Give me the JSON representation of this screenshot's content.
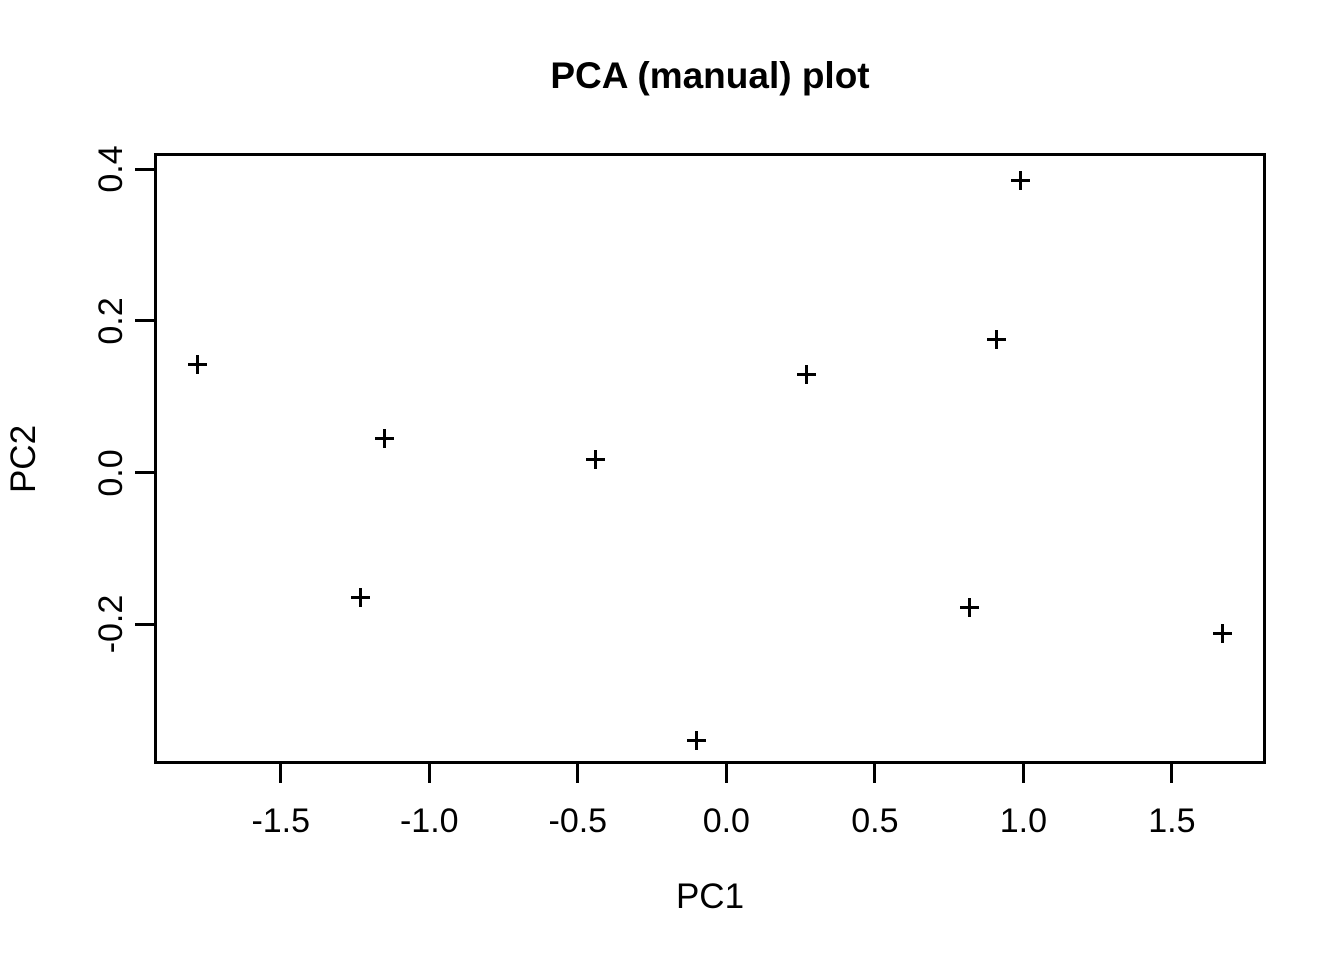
{
  "chart_data": {
    "type": "scatter",
    "title": "PCA (manual) plot",
    "xlabel": "PC1",
    "ylabel": "PC2",
    "marker": "plus",
    "color": "#000000",
    "background": "#ffffff",
    "grid": false,
    "legend": "none",
    "xlim": [
      -1.92,
      1.81
    ],
    "ylim": [
      -0.382,
      0.419
    ],
    "x_ticks": [
      -1.5,
      -1.0,
      -0.5,
      0.0,
      0.5,
      1.0,
      1.5
    ],
    "x_tick_labels": [
      "-1.5",
      "-1.0",
      "-0.5",
      "0.0",
      "0.5",
      "1.0",
      "1.5"
    ],
    "y_ticks": [
      -0.2,
      0.0,
      0.2,
      0.4
    ],
    "y_tick_labels": [
      "-0.2",
      "0.0",
      "0.2",
      "0.4"
    ],
    "points": [
      {
        "x": -1.78,
        "y": 0.143
      },
      {
        "x": -1.23,
        "y": -0.165
      },
      {
        "x": -1.15,
        "y": 0.045
      },
      {
        "x": -0.44,
        "y": 0.017
      },
      {
        "x": -0.1,
        "y": -0.354
      },
      {
        "x": 0.27,
        "y": 0.13
      },
      {
        "x": 0.82,
        "y": -0.178
      },
      {
        "x": 0.91,
        "y": 0.175
      },
      {
        "x": 0.99,
        "y": 0.386
      },
      {
        "x": 1.67,
        "y": -0.213
      }
    ]
  }
}
